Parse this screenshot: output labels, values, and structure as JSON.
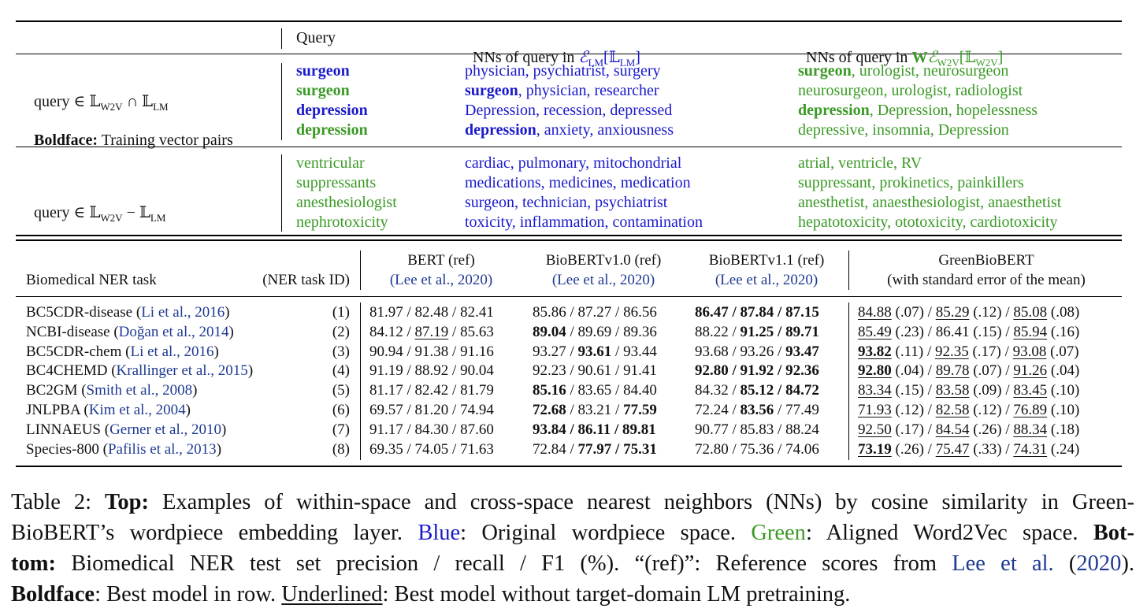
{
  "top": {
    "headers": {
      "query": "Query",
      "nn_lm_prefix": "NNs of query in ",
      "nn_lm_space": "ℰ",
      "nn_lm_sub": "LM",
      "nn_lm_bracket": "[𝕃",
      "nn_lm_bracket_sub": "LM",
      "nn_lm_close": "]",
      "nn_w2v_prefix": "NNs of query in ",
      "nn_w2v_W": "W",
      "nn_w2v_space": "ℰ",
      "nn_w2v_sub": "W2V",
      "nn_w2v_bracket": "[𝕃",
      "nn_w2v_bracket_sub": "W2V",
      "nn_w2v_close": "]"
    },
    "group1": {
      "label_query": "query ∈ 𝕃",
      "label_sub1": "W2V",
      "label_cap": " ∩ 𝕃",
      "label_sub2": "LM",
      "boldface_label": "Boldface:",
      "boldface_text": " Training vector pairs",
      "rows": [
        {
          "query": "surgeon",
          "lm_bold": "",
          "lm_rest": "physician, psychiatrist, surgery",
          "w2v_bold": "surgeon",
          "w2v_rest": ", urologist, neurosurgeon"
        },
        {
          "query": "surgeon",
          "lm_bold": "surgeon",
          "lm_rest": ", physician, researcher",
          "w2v_bold": "",
          "w2v_rest": "neurosurgeon, urologist, radiologist"
        },
        {
          "query": "depression",
          "lm_bold": "",
          "lm_rest": "Depression, recession, depressed",
          "w2v_bold": "depression",
          "w2v_rest": ", Depression, hopelessness"
        },
        {
          "query": "depression",
          "lm_bold": "depression",
          "lm_rest": ", anxiety, anxiousness",
          "w2v_bold": "",
          "w2v_rest": "depressive, insomnia, Depression"
        }
      ]
    },
    "group2": {
      "label_query": "query ∈ 𝕃",
      "label_sub1": "W2V",
      "label_minus": " − 𝕃",
      "label_sub2": "LM",
      "rows": [
        {
          "query": "ventricular",
          "lm": "cardiac, pulmonary, mitochondrial",
          "w2v": "atrial, ventricle, RV"
        },
        {
          "query": "suppressants",
          "lm": "medications, medicines, medication",
          "w2v": "suppressant, prokinetics, painkillers"
        },
        {
          "query": "anesthesiologist",
          "lm": "surgeon, technician, psychiatrist",
          "w2v": "anesthetist, anaesthesiologist, anaesthetist"
        },
        {
          "query": "nephrotoxicity",
          "lm": "toxicity, inflammation, contamination",
          "w2v": "hepatotoxicity, ototoxicity, cardiotoxicity"
        }
      ]
    }
  },
  "bottom": {
    "headers": {
      "task": "Biomedical NER task",
      "task_id": "(NER task ID)",
      "bert_1": "BERT (ref)",
      "bert_2": "(Lee et al., 2020)",
      "bio10_1": "BioBERTv1.0 (ref)",
      "bio10_2": "(Lee et al., 2020)",
      "bio11_1": "BioBERTv1.1 (ref)",
      "bio11_2": "(Lee et al., 2020)",
      "green_1": "GreenBioBERT",
      "green_2": "(with standard error of the mean)"
    },
    "rows": [
      {
        "task": "BC5CDR-disease",
        "cite": "Li et al., 2016",
        "id": "(1)",
        "bert": [
          [
            "81.97",
            "",
            ""
          ],
          [
            " / ",
            "",
            ""
          ],
          [
            "82.48",
            "",
            ""
          ],
          [
            " / ",
            "",
            ""
          ],
          [
            "82.41",
            "",
            ""
          ]
        ],
        "bio10": [
          [
            "85.86",
            "",
            ""
          ],
          [
            " / ",
            "",
            ""
          ],
          [
            "87.27",
            "",
            ""
          ],
          [
            " / ",
            "",
            ""
          ],
          [
            "86.56",
            "",
            ""
          ]
        ],
        "bio11": [
          [
            "86.47",
            "b",
            ""
          ],
          [
            " / ",
            "b",
            ""
          ],
          [
            "87.84",
            "b",
            ""
          ],
          [
            " / ",
            "b",
            ""
          ],
          [
            "87.15",
            "b",
            ""
          ]
        ],
        "green": [
          [
            "84.88",
            "",
            "u"
          ],
          [
            " (.07) / ",
            "",
            ""
          ],
          [
            "85.29",
            "",
            "u"
          ],
          [
            " (.12) / ",
            "",
            ""
          ],
          [
            "85.08",
            "",
            "u"
          ],
          [
            " (.08)",
            "",
            ""
          ]
        ]
      },
      {
        "task": "NCBI-disease",
        "cite": "Doğan et al., 2014",
        "id": "(2)",
        "bert": [
          [
            "84.12",
            "",
            ""
          ],
          [
            " / ",
            "",
            ""
          ],
          [
            "87.19",
            "",
            "u"
          ],
          [
            " / ",
            "",
            ""
          ],
          [
            "85.63",
            "",
            ""
          ]
        ],
        "bio10": [
          [
            "89.04",
            "b",
            ""
          ],
          [
            " / ",
            "",
            ""
          ],
          [
            "89.69",
            "",
            ""
          ],
          [
            " / ",
            "",
            ""
          ],
          [
            "89.36",
            "",
            ""
          ]
        ],
        "bio11": [
          [
            "88.22",
            "",
            ""
          ],
          [
            " / ",
            "",
            ""
          ],
          [
            "91.25",
            "b",
            ""
          ],
          [
            " / ",
            "b",
            ""
          ],
          [
            "89.71",
            "b",
            ""
          ]
        ],
        "green": [
          [
            "85.49",
            "",
            "u"
          ],
          [
            " (.23) / ",
            "",
            ""
          ],
          [
            "86.41",
            "",
            ""
          ],
          [
            " (.15) / ",
            "",
            ""
          ],
          [
            "85.94",
            "",
            "u"
          ],
          [
            " (.16)",
            "",
            ""
          ]
        ]
      },
      {
        "task": "BC5CDR-chem",
        "cite": "Li et al., 2016",
        "id": "(3)",
        "bert": [
          [
            "90.94",
            "",
            ""
          ],
          [
            " / ",
            "",
            ""
          ],
          [
            "91.38",
            "",
            ""
          ],
          [
            " / ",
            "",
            ""
          ],
          [
            "91.16",
            "",
            ""
          ]
        ],
        "bio10": [
          [
            "93.27",
            "",
            ""
          ],
          [
            " / ",
            "",
            ""
          ],
          [
            "93.61",
            "b",
            ""
          ],
          [
            " / ",
            "",
            ""
          ],
          [
            "93.44",
            "",
            ""
          ]
        ],
        "bio11": [
          [
            "93.68",
            "",
            ""
          ],
          [
            " / ",
            "",
            ""
          ],
          [
            "93.26",
            "",
            ""
          ],
          [
            " / ",
            "",
            ""
          ],
          [
            "93.47",
            "b",
            ""
          ]
        ],
        "green": [
          [
            "93.82",
            "b",
            "u"
          ],
          [
            " (.11) / ",
            "",
            ""
          ],
          [
            "92.35",
            "",
            "u"
          ],
          [
            " (.17) / ",
            "",
            ""
          ],
          [
            "93.08",
            "",
            "u"
          ],
          [
            " (.07)",
            "",
            ""
          ]
        ]
      },
      {
        "task": "BC4CHEMD",
        "cite": "Krallinger et al., 2015",
        "id": "(4)",
        "bert": [
          [
            "91.19",
            "",
            ""
          ],
          [
            " / ",
            "",
            ""
          ],
          [
            "88.92",
            "",
            ""
          ],
          [
            " / ",
            "",
            ""
          ],
          [
            "90.04",
            "",
            ""
          ]
        ],
        "bio10": [
          [
            "92.23",
            "",
            ""
          ],
          [
            " / ",
            "",
            ""
          ],
          [
            "90.61",
            "",
            ""
          ],
          [
            " / ",
            "",
            ""
          ],
          [
            "91.41",
            "",
            ""
          ]
        ],
        "bio11": [
          [
            "92.80",
            "b",
            ""
          ],
          [
            " / ",
            "b",
            ""
          ],
          [
            "91.92",
            "b",
            ""
          ],
          [
            " / ",
            "b",
            ""
          ],
          [
            "92.36",
            "b",
            ""
          ]
        ],
        "green": [
          [
            "92.80",
            "b",
            "u"
          ],
          [
            " (.04) / ",
            "",
            ""
          ],
          [
            "89.78",
            "",
            "u"
          ],
          [
            " (.07) / ",
            "",
            ""
          ],
          [
            "91.26",
            "",
            "u"
          ],
          [
            " (.04)",
            "",
            ""
          ]
        ]
      },
      {
        "task": "BC2GM",
        "cite": "Smith et al., 2008",
        "id": "(5)",
        "bert": [
          [
            "81.17",
            "",
            ""
          ],
          [
            " / ",
            "",
            ""
          ],
          [
            "82.42",
            "",
            ""
          ],
          [
            " / ",
            "",
            ""
          ],
          [
            "81.79",
            "",
            ""
          ]
        ],
        "bio10": [
          [
            "85.16",
            "b",
            ""
          ],
          [
            " / ",
            "",
            ""
          ],
          [
            "83.65",
            "",
            ""
          ],
          [
            " / ",
            "",
            ""
          ],
          [
            "84.40",
            "",
            ""
          ]
        ],
        "bio11": [
          [
            "84.32",
            "",
            ""
          ],
          [
            " / ",
            "",
            ""
          ],
          [
            "85.12",
            "b",
            ""
          ],
          [
            " / ",
            "b",
            ""
          ],
          [
            "84.72",
            "b",
            ""
          ]
        ],
        "green": [
          [
            "83.34",
            "",
            "u"
          ],
          [
            " (.15) / ",
            "",
            ""
          ],
          [
            "83.58",
            "",
            "u"
          ],
          [
            " (.09) / ",
            "",
            ""
          ],
          [
            "83.45",
            "",
            "u"
          ],
          [
            " (.10)",
            "",
            ""
          ]
        ]
      },
      {
        "task": "JNLPBA",
        "cite": "Kim et al., 2004",
        "id": "(6)",
        "bert": [
          [
            "69.57",
            "",
            ""
          ],
          [
            " / ",
            "",
            ""
          ],
          [
            "81.20",
            "",
            ""
          ],
          [
            " / ",
            "",
            ""
          ],
          [
            "74.94",
            "",
            ""
          ]
        ],
        "bio10": [
          [
            "72.68",
            "b",
            ""
          ],
          [
            " / ",
            "",
            ""
          ],
          [
            "83.21",
            "",
            ""
          ],
          [
            " / ",
            "",
            ""
          ],
          [
            "77.59",
            "b",
            ""
          ]
        ],
        "bio11": [
          [
            "72.24",
            "",
            ""
          ],
          [
            " / ",
            "",
            ""
          ],
          [
            "83.56",
            "b",
            ""
          ],
          [
            " / ",
            "",
            ""
          ],
          [
            "77.49",
            "",
            ""
          ]
        ],
        "green": [
          [
            "71.93",
            "",
            "u"
          ],
          [
            " (.12) / ",
            "",
            ""
          ],
          [
            "82.58",
            "",
            "u"
          ],
          [
            " (.12) / ",
            "",
            ""
          ],
          [
            "76.89",
            "",
            "u"
          ],
          [
            " (.10)",
            "",
            ""
          ]
        ]
      },
      {
        "task": "LINNAEUS",
        "cite": "Gerner et al., 2010",
        "id": "(7)",
        "bert": [
          [
            "91.17",
            "",
            ""
          ],
          [
            " / ",
            "",
            ""
          ],
          [
            "84.30",
            "",
            ""
          ],
          [
            " / ",
            "",
            ""
          ],
          [
            "87.60",
            "",
            ""
          ]
        ],
        "bio10": [
          [
            "93.84",
            "b",
            ""
          ],
          [
            " / ",
            "b",
            ""
          ],
          [
            "86.11",
            "b",
            ""
          ],
          [
            " / ",
            "b",
            ""
          ],
          [
            "89.81",
            "b",
            ""
          ]
        ],
        "bio11": [
          [
            "90.77",
            "",
            ""
          ],
          [
            " / ",
            "",
            ""
          ],
          [
            "85.83",
            "",
            ""
          ],
          [
            " / ",
            "",
            ""
          ],
          [
            "88.24",
            "",
            ""
          ]
        ],
        "green": [
          [
            "92.50",
            "",
            "u"
          ],
          [
            " (.17) / ",
            "",
            ""
          ],
          [
            "84.54",
            "",
            "u"
          ],
          [
            " (.26) / ",
            "",
            ""
          ],
          [
            "88.34",
            "",
            "u"
          ],
          [
            " (.18)",
            "",
            ""
          ]
        ]
      },
      {
        "task": "Species-800",
        "cite": "Pafilis et al., 2013",
        "id": "(8)",
        "bert": [
          [
            "69.35",
            "",
            ""
          ],
          [
            " / ",
            "",
            ""
          ],
          [
            "74.05",
            "",
            ""
          ],
          [
            " / ",
            "",
            ""
          ],
          [
            "71.63",
            "",
            ""
          ]
        ],
        "bio10": [
          [
            "72.84",
            "",
            ""
          ],
          [
            " / ",
            "",
            ""
          ],
          [
            "77.97",
            "b",
            ""
          ],
          [
            " / ",
            "b",
            ""
          ],
          [
            "75.31",
            "b",
            ""
          ]
        ],
        "bio11": [
          [
            "72.80",
            "",
            ""
          ],
          [
            " / ",
            "",
            ""
          ],
          [
            "75.36",
            "",
            ""
          ],
          [
            " / ",
            "",
            ""
          ],
          [
            "74.06",
            "",
            ""
          ]
        ],
        "green": [
          [
            "73.19",
            "b",
            "u"
          ],
          [
            " (.26) / ",
            "",
            ""
          ],
          [
            "75.47",
            "",
            "u"
          ],
          [
            " (.33) / ",
            "",
            ""
          ],
          [
            "74.31",
            "",
            "u"
          ],
          [
            " (.24)",
            "",
            ""
          ]
        ]
      }
    ]
  },
  "caption": {
    "l1_a": "Table 2: ",
    "l1_b": "Top:",
    "l1_c": " Examples of within-space and cross-space nearest neighbors (NNs) by cosine similarity in Green-",
    "l2_a": "BioBERT’s wordpiece embedding layer. ",
    "l2_blue": "Blue",
    "l2_b": ": Original wordpiece space. ",
    "l2_green": "Green",
    "l2_c": ": Aligned Word2Vec space. ",
    "l2_bold": "Bot-",
    "l3_bold": "tom:",
    "l3_a": "  Biomedical NER test set precision / recall / F1 (%).  “(ref)”:  Reference scores from ",
    "l3_cite": "Lee et al.",
    "l3_b": " (",
    "l3_year": "2020",
    "l3_c": ").",
    "l4_bold": "Boldface",
    "l4_a": ": Best model in row. ",
    "l4_u": "Underlined",
    "l4_b": ": Best model without target-domain LM pretraining."
  }
}
